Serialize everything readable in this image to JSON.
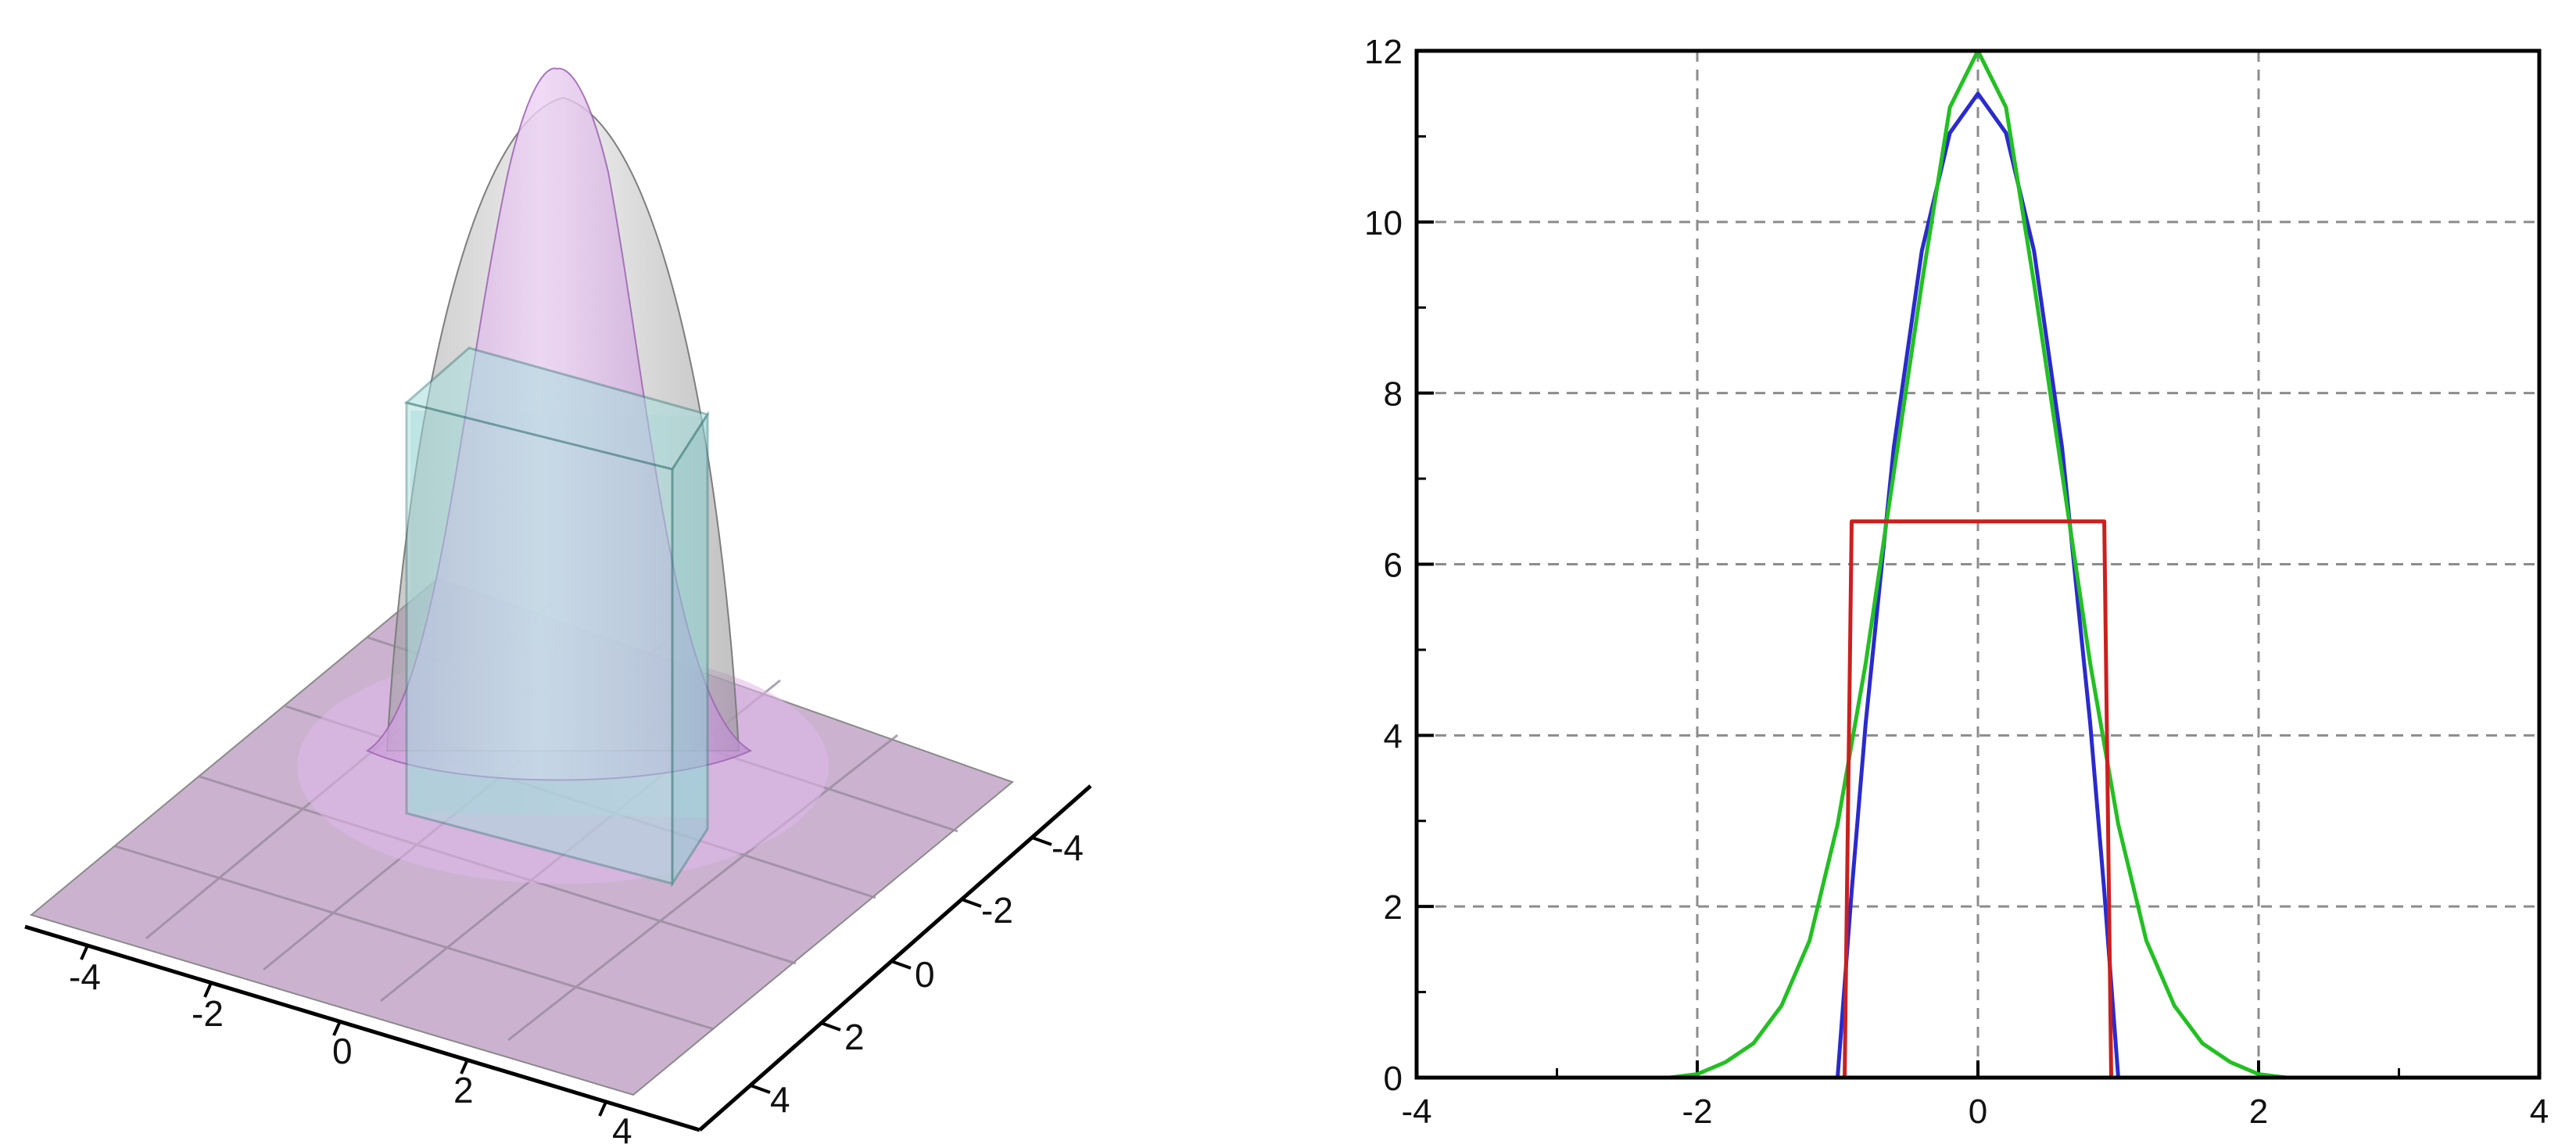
{
  "chart_data": [
    {
      "type": "surface3d",
      "title": "",
      "x_ticks": [
        "-4",
        "-2",
        "0",
        "2",
        "4"
      ],
      "y_ticks": [
        "-4",
        "-2",
        "0",
        "2",
        "4"
      ],
      "xlim": [
        -5,
        5
      ],
      "ylim": [
        -5,
        5
      ],
      "zlim": [
        0,
        12
      ],
      "surfaces": [
        {
          "shape": "gaussian",
          "peak": 12,
          "color": "#d9a6e6"
        },
        {
          "shape": "parabolic-dome",
          "peak": 11.5,
          "color": "#b9b9b9"
        },
        {
          "shape": "box",
          "height": 6.5,
          "half_width": 0.9,
          "color": "#9fd6d6"
        }
      ],
      "grid": true
    },
    {
      "type": "line",
      "title": "",
      "xlabel": "",
      "ylabel": "",
      "xlim": [
        -4,
        4
      ],
      "ylim": [
        0,
        12
      ],
      "x_ticks": [
        "-4",
        "-2",
        "0",
        "2",
        "4"
      ],
      "y_ticks": [
        "0",
        "2",
        "4",
        "6",
        "8",
        "10",
        "12"
      ],
      "grid": true,
      "series": [
        {
          "color": "#2a2ad0",
          "x": [
            -1,
            -0.9,
            -0.8,
            -0.6,
            -0.4,
            -0.2,
            0,
            0.2,
            0.4,
            0.6,
            0.8,
            0.9,
            1
          ],
          "y": [
            0,
            2.18,
            4.14,
            7.36,
            9.66,
            11.04,
            11.5,
            11.04,
            9.66,
            7.36,
            4.14,
            2.18,
            0
          ]
        },
        {
          "color": "#22c022",
          "x": [
            -2.2,
            -2,
            -1.8,
            -1.6,
            -1.4,
            -1.2,
            -1,
            -0.8,
            -0.6,
            -0.4,
            -0.2,
            0,
            0.2,
            0.4,
            0.6,
            0.8,
            1,
            1.2,
            1.4,
            1.6,
            1.8,
            2,
            2.2
          ],
          "y": [
            0,
            0.04,
            0.18,
            0.4,
            0.84,
            1.6,
            2.96,
            4.84,
            7.06,
            9.28,
            11.34,
            12,
            11.34,
            9.28,
            7.06,
            4.84,
            2.96,
            1.6,
            0.84,
            0.4,
            0.18,
            0.04,
            0
          ]
        },
        {
          "color": "#cc1f1f",
          "x": [
            -0.95,
            -0.9,
            0.9,
            0.95
          ],
          "y": [
            0,
            6.5,
            6.5,
            0
          ]
        }
      ]
    }
  ]
}
